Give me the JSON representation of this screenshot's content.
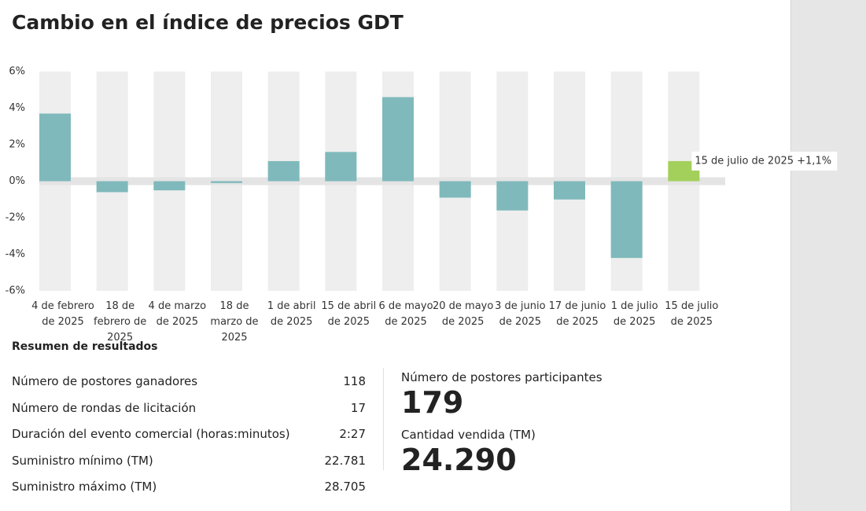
{
  "chart_data": {
    "type": "bar",
    "title": "Cambio en el índice de precios GDT",
    "categories": [
      "4 de febrero de 2025",
      "18 de febrero de 2025",
      "4 de marzo de 2025",
      "18 de marzo de 2025",
      "1 de abril de 2025",
      "15 de abril de 2025",
      "6 de mayo de 2025",
      "20 de mayo de 2025",
      "3 de junio de 2025",
      "17 de junio de 2025",
      "1 de julio de 2025",
      "15 de julio de 2025"
    ],
    "values": [
      3.7,
      -0.6,
      -0.5,
      -0.1,
      1.1,
      1.6,
      4.6,
      -0.9,
      -1.6,
      -1.0,
      -4.2,
      1.1
    ],
    "colors": [
      "#7fb9bb",
      "#7fb9bb",
      "#7fb9bb",
      "#7fb9bb",
      "#7fb9bb",
      "#7fb9bb",
      "#7fb9bb",
      "#7fb9bb",
      "#7fb9bb",
      "#7fb9bb",
      "#7fb9bb",
      "#a3d05a"
    ],
    "annotation": "15 de julio de 2025 +1,1%",
    "ylim": [
      -6,
      6
    ],
    "yticks": [
      {
        "value": -6,
        "label": "-6%"
      },
      {
        "value": -4,
        "label": "-4%"
      },
      {
        "value": -2,
        "label": "-2%"
      },
      {
        "value": 0,
        "label": "0%"
      },
      {
        "value": 2,
        "label": "2%"
      },
      {
        "value": 4,
        "label": "4%"
      },
      {
        "value": 6,
        "label": "6%"
      }
    ]
  },
  "summary": {
    "title": "Resumen de resultados",
    "rows": [
      [
        "Número de postores ganadores",
        "118"
      ],
      [
        "Número de rondas de licitación",
        "17"
      ],
      [
        "Duración del evento comercial (horas:minutos)",
        "2:27"
      ],
      [
        "Suministro mínimo (TM)",
        "22.781"
      ],
      [
        "Suministro máximo (TM)",
        "28.705"
      ]
    ],
    "stats": [
      {
        "label": "Número de postores participantes",
        "value": "179"
      },
      {
        "label": "Cantidad vendida (TM)",
        "value": "24.290"
      }
    ]
  }
}
